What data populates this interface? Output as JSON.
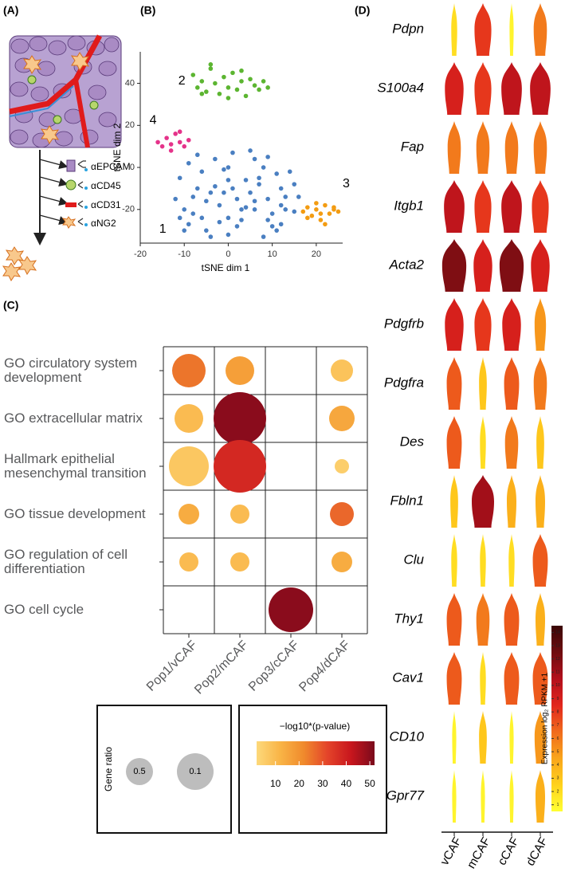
{
  "diagram": {
    "label": "(A)",
    "antibodies": [
      "αEPCAM",
      "αCD45",
      "αCD31",
      "αNG2"
    ]
  },
  "chart_data": [
    {
      "type": "scatter",
      "panel": "(B)",
      "xlabel": "tSNE dim 1",
      "ylabel": "tSNE dim 2",
      "xlim": [
        -20,
        26
      ],
      "ylim": [
        -36,
        55
      ],
      "xticks": [
        -20,
        -10,
        0,
        10,
        20
      ],
      "yticks": [
        -20,
        0,
        20,
        40
      ],
      "series": [
        {
          "name": "1",
          "color": "#4a7fc1",
          "x": [
            -11,
            -9,
            -7,
            -5,
            -3,
            -1,
            1,
            3,
            5,
            7,
            9,
            11,
            13,
            15,
            -10,
            -8,
            -6,
            -4,
            -2,
            0,
            2,
            4,
            6,
            8,
            10,
            12,
            14,
            -9,
            -6,
            -3,
            0,
            3,
            6,
            9,
            12,
            -7,
            -2,
            2,
            7,
            11,
            -12,
            -8,
            -4,
            0,
            4,
            8,
            12,
            16,
            -10,
            -5,
            0,
            5,
            10,
            15,
            -11,
            -1,
            1,
            6,
            9,
            13
          ],
          "values": [
            -5,
            2,
            6,
            -30,
            4,
            -12,
            7,
            -25,
            8,
            -8,
            5,
            -3,
            -14,
            -21,
            -20,
            -14,
            -2,
            -33,
            -18,
            0,
            -28,
            -6,
            -16,
            -33,
            -22,
            -10,
            -2,
            -27,
            -24,
            -9,
            -32,
            -20,
            4,
            -15,
            -27,
            -10,
            -26,
            -15,
            -5,
            -30,
            -15,
            -22,
            -12,
            -6,
            -19,
            0,
            -18,
            -14,
            -30,
            -16,
            -24,
            -12,
            -28,
            -8,
            -24,
            -1,
            -10,
            -20,
            -25,
            -20
          ]
        },
        {
          "name": "2",
          "color": "#5cb531",
          "x": [
            -8,
            -7,
            -6,
            -5,
            -4,
            -3,
            -2,
            -1,
            0,
            1,
            2,
            3,
            4,
            5,
            6,
            7,
            8,
            9,
            -4,
            0,
            3,
            -6
          ],
          "values": [
            44,
            38,
            41,
            36,
            47,
            40,
            35,
            43,
            38,
            45,
            37,
            41,
            34,
            42,
            39,
            37,
            41,
            38,
            49,
            33,
            46,
            35
          ]
        },
        {
          "name": "3",
          "color": "#f39c12",
          "x": [
            17,
            18,
            19,
            20,
            21,
            22,
            23,
            24,
            25,
            18,
            20,
            22,
            24,
            21
          ],
          "values": [
            -21,
            -19,
            -23,
            -20,
            -25,
            -18,
            -22,
            -20,
            -21,
            -24,
            -17,
            -27,
            -19,
            -22
          ]
        },
        {
          "name": "4",
          "color": "#e5338a",
          "x": [
            -16,
            -15,
            -14,
            -13,
            -12,
            -11,
            -10,
            -9,
            -13,
            -11
          ],
          "values": [
            12,
            10,
            14,
            11,
            16,
            12,
            10,
            13,
            8,
            17
          ]
        }
      ]
    },
    {
      "type": "dot",
      "panel": "(C)",
      "categories": [
        "Pop1/vCAF",
        "Pop2/mCAF",
        "Pop3/cCAF",
        "Pop4/dCAF"
      ],
      "rows": [
        "GO circulatory system development",
        "GO extracellular matrix",
        "Hallmark epithelial mesenchymal transition",
        "GO tissue development",
        "GO regulation of cell differentiation",
        "GO cell cycle"
      ],
      "values": [
        [
          25,
          17,
          null,
          8
        ],
        [
          10,
          50,
          null,
          15
        ],
        [
          7,
          38,
          null,
          5
        ],
        [
          14,
          10,
          null,
          27
        ],
        [
          10,
          10,
          null,
          14
        ],
        [
          null,
          null,
          50,
          null
        ]
      ],
      "sizes": [
        [
          0.21,
          0.18,
          null,
          0.14
        ],
        [
          0.18,
          0.33,
          null,
          0.16
        ],
        [
          0.25,
          0.33,
          null,
          0.09
        ],
        [
          0.13,
          0.12,
          null,
          0.15
        ],
        [
          0.12,
          0.12,
          null,
          0.13
        ],
        [
          null,
          null,
          0.28,
          null
        ]
      ],
      "size_legend": {
        "title": "Gene ratio",
        "values": [
          0.5,
          0.1
        ]
      },
      "color_legend": {
        "title": "−log10*(p-value)",
        "clim": [
          2,
          52
        ],
        "ticks": [
          10,
          20,
          30,
          40,
          50
        ]
      },
      "colormap": [
        "#fdd97b",
        "#f9b446",
        "#f08a2c",
        "#e4442a",
        "#c8161d",
        "#7a0a1c"
      ]
    },
    {
      "type": "violin",
      "panel": "(D)",
      "categories": [
        "vCAF",
        "mCAF",
        "cCAF",
        "dCAF"
      ],
      "genes": [
        "Pdpn",
        "S100a4",
        "Fap",
        "Itgb1",
        "Acta2",
        "Pdgfrb",
        "Pdgfra",
        "Des",
        "Fbln1",
        "Clu",
        "Thy1",
        "Cav1",
        "CD10",
        "Gpr77"
      ],
      "values": [
        [
          2,
          8,
          1,
          6
        ],
        [
          9,
          8,
          10,
          10
        ],
        [
          6,
          6,
          6,
          6
        ],
        [
          10,
          8,
          10,
          8
        ],
        [
          12,
          9,
          12,
          9
        ],
        [
          9,
          8,
          9,
          5
        ],
        [
          7,
          3,
          7,
          6
        ],
        [
          7,
          2,
          6,
          3
        ],
        [
          3,
          11,
          4,
          4
        ],
        [
          2,
          2,
          2,
          7
        ],
        [
          7,
          6,
          7,
          4
        ],
        [
          7,
          2,
          7,
          7
        ],
        [
          1,
          3,
          1,
          5
        ],
        [
          1,
          1,
          1,
          4
        ]
      ],
      "colorbar": {
        "label": "Expression log₂ RPKM +1",
        "lim": [
          0.5,
          14.5
        ],
        "ticks": [
          1,
          2,
          3,
          4,
          5,
          6,
          7,
          8,
          9,
          10,
          11,
          12,
          13,
          14
        ]
      },
      "colormap": [
        "#ffff33",
        "#ffd21c",
        "#f9a51b",
        "#f06b1c",
        "#e2261c",
        "#b30f1c",
        "#6e0d10",
        "#3a0606"
      ]
    }
  ]
}
